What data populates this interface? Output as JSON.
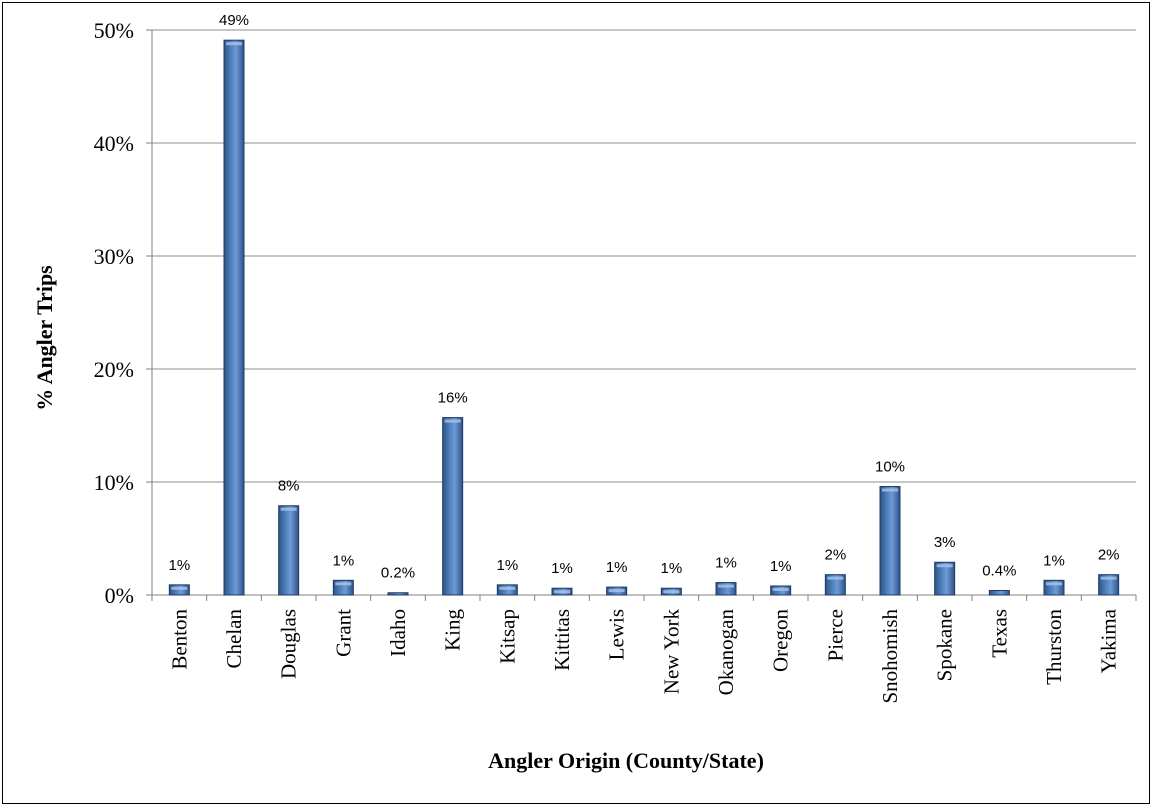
{
  "chart_data": {
    "type": "bar",
    "title": "",
    "xlabel": "Angler Origin (County/State)",
    "ylabel": "% Angler Trips",
    "ylim": [
      0,
      50
    ],
    "yticks": [
      "0%",
      "10%",
      "20%",
      "30%",
      "40%",
      "50%"
    ],
    "grid": true,
    "legend": "none",
    "bar_color": "#4f81bd",
    "categories": [
      "Benton",
      "Chelan",
      "Douglas",
      "Grant",
      "Idaho",
      "King",
      "Kitsap",
      "Kittitas",
      "Lewis",
      "New York",
      "Okanogan",
      "Oregon",
      "Pierce",
      "Snohomish",
      "Spokane",
      "Texas",
      "Thurston",
      "Yakima"
    ],
    "values": [
      0.9,
      49.1,
      7.9,
      1.3,
      0.2,
      15.7,
      0.9,
      0.6,
      0.7,
      0.6,
      1.1,
      0.8,
      1.8,
      9.6,
      2.9,
      0.4,
      1.3,
      1.8
    ],
    "data_labels": [
      "1%",
      "49%",
      "8%",
      "1%",
      "0.2%",
      "16%",
      "1%",
      "1%",
      "1%",
      "1%",
      "1%",
      "1%",
      "2%",
      "10%",
      "3%",
      "0.4%",
      "1%",
      "2%"
    ]
  }
}
